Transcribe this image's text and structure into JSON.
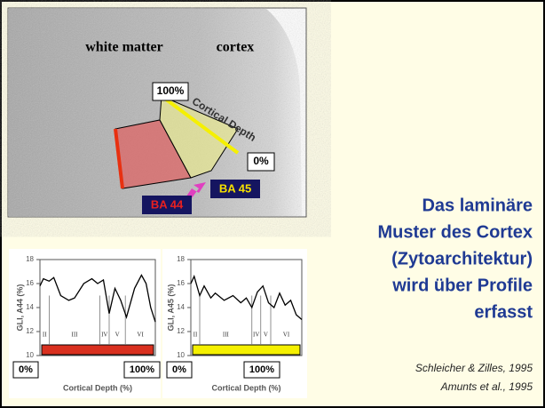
{
  "image": {
    "white_matter": "white matter",
    "cortex": "cortex",
    "top_percent": "100%",
    "depth_label": "Cortical Depth",
    "bottom_percent": "0%",
    "ba45": "BA 45",
    "ba44": "BA 44"
  },
  "title_lines": [
    "Das laminäre",
    "Muster des Cortex",
    "(Zytoarchitektur)",
    "wird über Profile",
    "erfasst"
  ],
  "citations": [
    "Schleicher & Zilles, 1995",
    "Amunts et al., 1995"
  ],
  "chart_data": [
    {
      "type": "line",
      "y_label": "GLI, A44 (%)",
      "x_label": "Cortical Depth (%)",
      "x": [
        0,
        3,
        8,
        12,
        18,
        25,
        30,
        38,
        45,
        50,
        55,
        60,
        65,
        70,
        75,
        82,
        88,
        92,
        96,
        100
      ],
      "values": [
        15.8,
        16.4,
        16.2,
        16.5,
        15,
        14.6,
        14.8,
        16,
        16.4,
        16,
        16.3,
        13.5,
        15.6,
        14.6,
        13.2,
        15.6,
        16.7,
        16,
        14,
        12.8
      ],
      "color": "#000000",
      "xlim": [
        0,
        100
      ],
      "ylim": [
        10,
        18
      ],
      "yticks": [
        10,
        12,
        14,
        16,
        18
      ],
      "layers": [
        "II",
        "III",
        "IV",
        "V",
        "VI"
      ],
      "layer_boundaries": [
        8,
        52,
        60,
        74
      ],
      "bar_color": "#d9301f",
      "depth_labels": [
        "0%",
        "100%"
      ]
    },
    {
      "type": "line",
      "y_label": "GLI, A45 (%)",
      "x_label": "Cortical Depth (%)",
      "x": [
        0,
        3,
        8,
        12,
        18,
        22,
        30,
        38,
        45,
        50,
        55,
        60,
        65,
        70,
        75,
        80,
        85,
        90,
        95,
        100
      ],
      "values": [
        16,
        16.6,
        15,
        15.8,
        14.8,
        15.2,
        14.6,
        15,
        14.4,
        14.8,
        14,
        15.3,
        15.8,
        14.4,
        14,
        15.2,
        14.2,
        14.6,
        13.4,
        13
      ],
      "color": "#000000",
      "xlim": [
        0,
        100
      ],
      "ylim": [
        10,
        18
      ],
      "yticks": [
        10,
        12,
        14,
        16,
        18
      ],
      "layers": [
        "II",
        "III",
        "IV",
        "V",
        "VI"
      ],
      "layer_boundaries": [
        8,
        55,
        63,
        72
      ],
      "bar_color": "#f5f000",
      "depth_labels": [
        "0%",
        "100%"
      ]
    }
  ]
}
